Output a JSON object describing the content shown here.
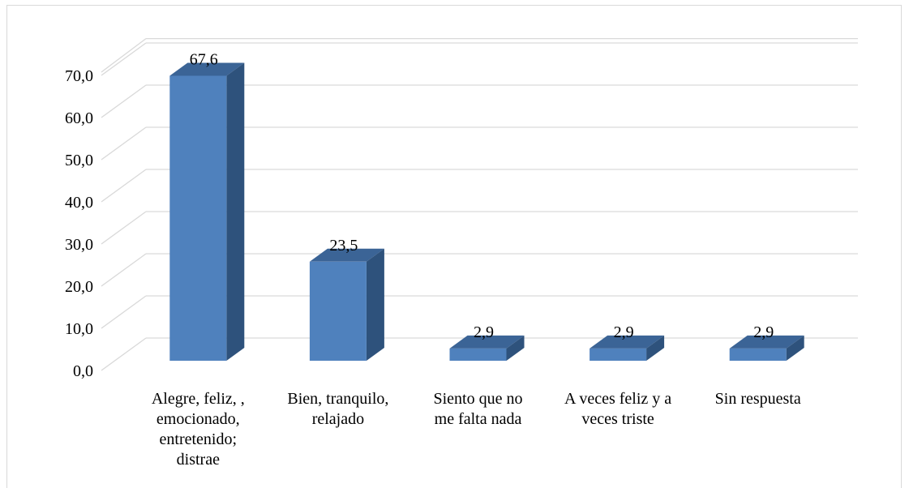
{
  "chart_data": {
    "type": "bar",
    "style": "3d-column",
    "title": "",
    "xlabel": "",
    "ylabel": "",
    "ylim": [
      0,
      70
    ],
    "grid": true,
    "legend": "none",
    "y_ticks": [
      "0,0",
      "10,0",
      "20,0",
      "30,0",
      "40,0",
      "50,0",
      "60,0",
      "70,0"
    ],
    "categories": [
      [
        "Alegre, feliz, ,",
        "emocionado,",
        "entretenido;",
        "distrae"
      ],
      [
        "Bien, tranquilo,",
        "relajado"
      ],
      [
        "Siento que no",
        "me falta nada"
      ],
      [
        "A veces feliz y a",
        "veces triste"
      ],
      [
        "Sin respuesta"
      ]
    ],
    "values": [
      67.6,
      23.5,
      2.9,
      2.9,
      2.9
    ],
    "data_labels": [
      "67,6",
      "23,5",
      "2,9",
      "2,9",
      "2,9"
    ],
    "colors": {
      "bar_front": "#4f81bd",
      "bar_top": "#3b6496",
      "bar_side": "#2e527c",
      "gridline": "#d9d9d9"
    }
  }
}
